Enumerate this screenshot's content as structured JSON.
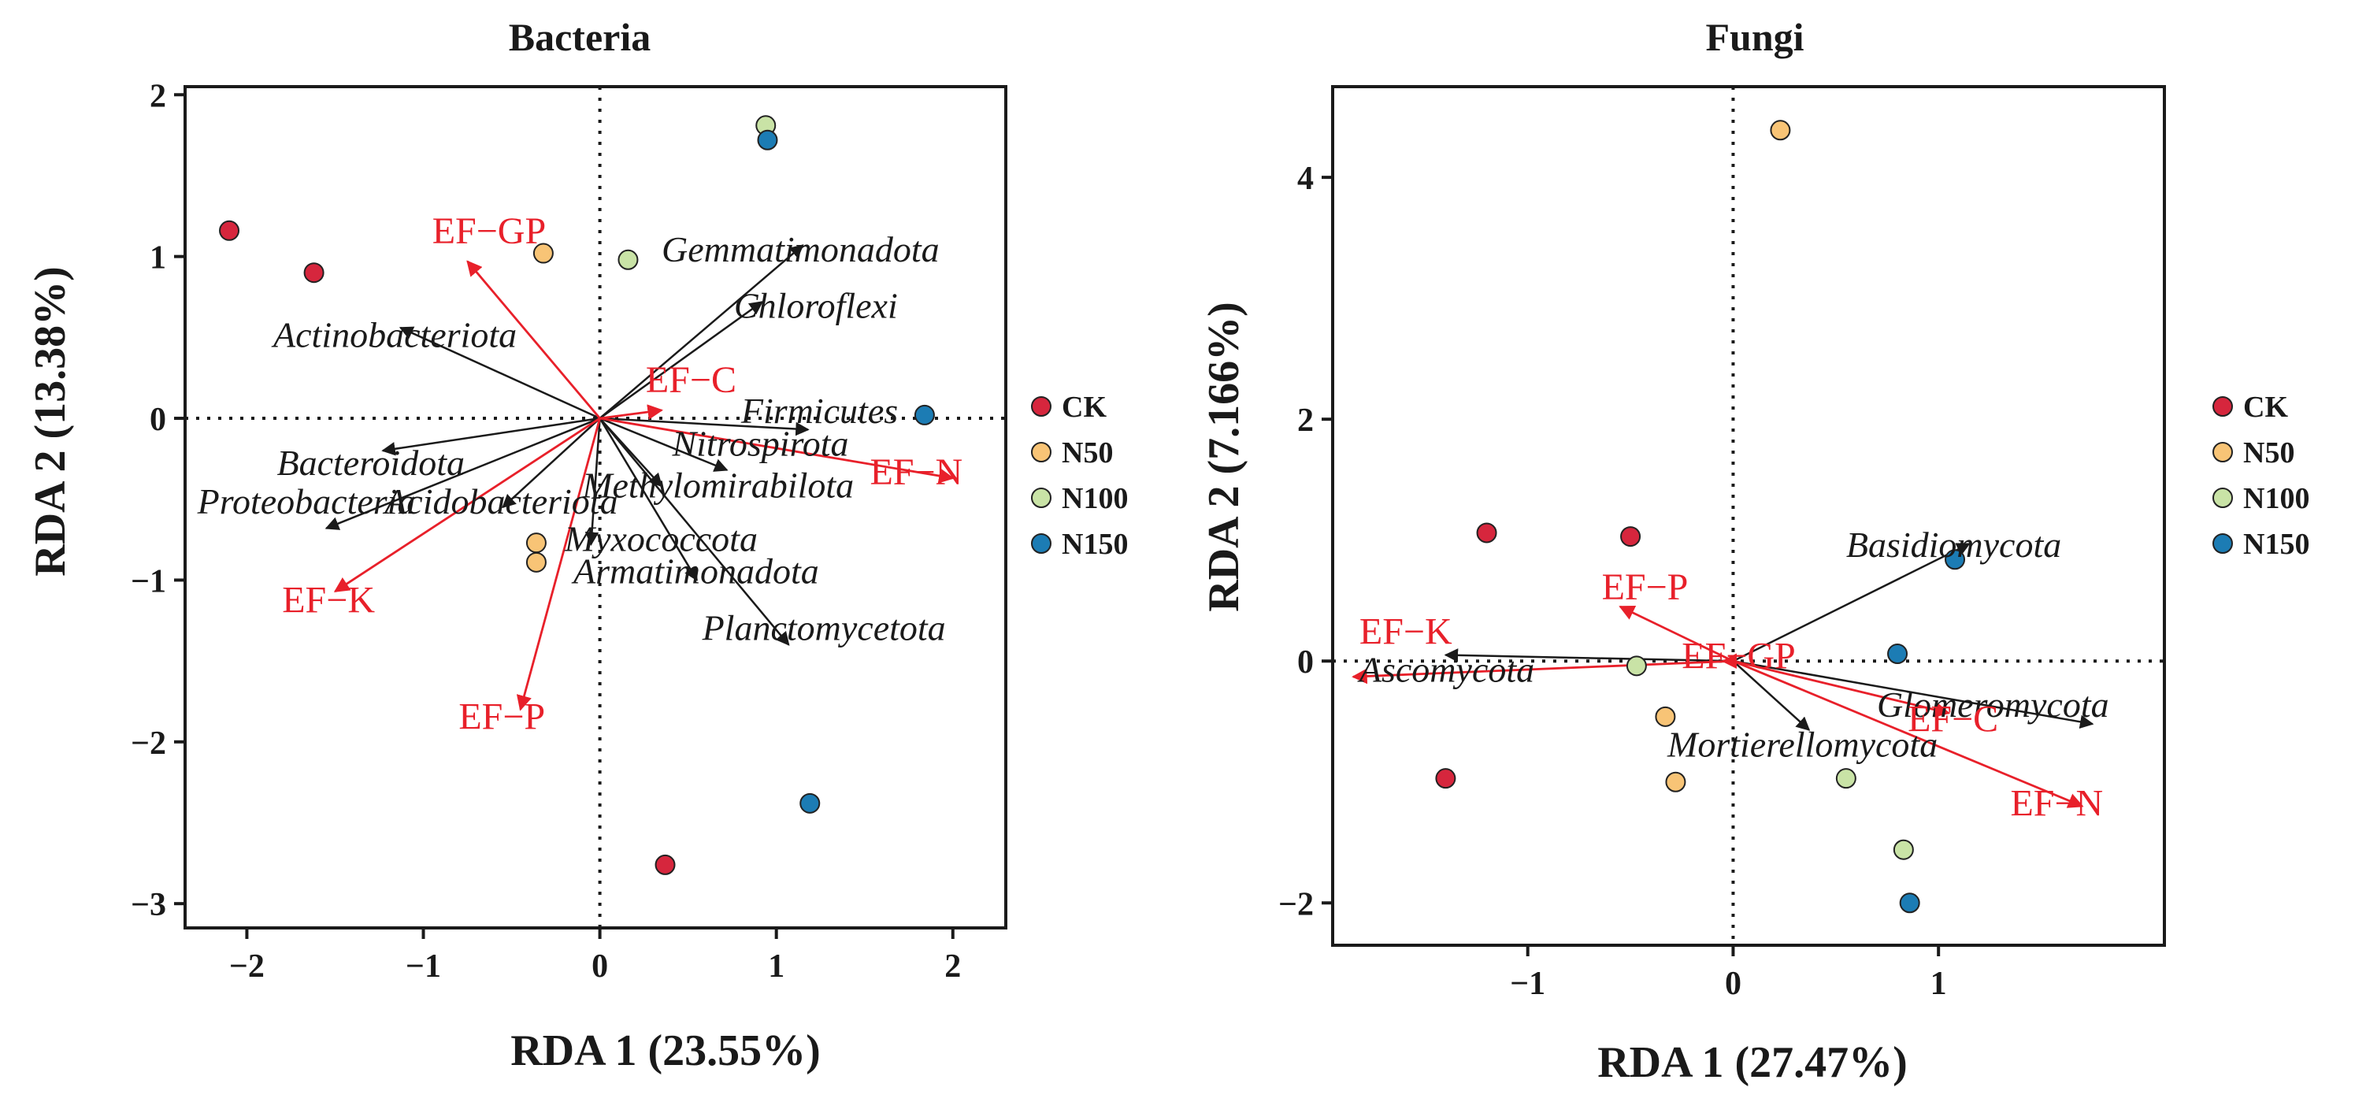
{
  "chart_data": [
    {
      "type": "scatter",
      "subtype": "rda-biplot",
      "title": "Bacteria",
      "xlabel": "RDA 1 (23.55%)",
      "ylabel": "RDA 2 (13.38%)",
      "xlim": [
        -2.35,
        2.3
      ],
      "ylim": [
        -3.15,
        2.05
      ],
      "xticks": [
        -2,
        -1,
        0,
        1,
        2
      ],
      "yticks": [
        -3,
        -2,
        -1,
        0,
        1,
        2
      ],
      "grid": false,
      "legend": "right",
      "groups": [
        {
          "name": "CK",
          "color": "#d6263d"
        },
        {
          "name": "N50",
          "color": "#f8c476"
        },
        {
          "name": "N100",
          "color": "#c9e3a6"
        },
        {
          "name": "N150",
          "color": "#1c7cb4"
        }
      ],
      "points": [
        {
          "group": "CK",
          "x": -2.1,
          "y": 1.16
        },
        {
          "group": "CK",
          "x": -1.62,
          "y": 0.9
        },
        {
          "group": "CK",
          "x": 0.37,
          "y": -2.76
        },
        {
          "group": "N50",
          "x": -0.32,
          "y": 1.02
        },
        {
          "group": "N50",
          "x": -0.36,
          "y": -0.77
        },
        {
          "group": "N50",
          "x": -0.36,
          "y": -0.89
        },
        {
          "group": "N100",
          "x": 0.16,
          "y": 0.98
        },
        {
          "group": "N100",
          "x": 0.94,
          "y": 1.81
        },
        {
          "group": "N150",
          "x": 0.95,
          "y": 1.72
        },
        {
          "group": "N150",
          "x": 1.84,
          "y": 0.02
        },
        {
          "group": "N150",
          "x": 1.19,
          "y": -2.38
        }
      ],
      "species": [
        {
          "name": "Gemmatimonadota",
          "x": 1.15,
          "y": 1.07
        },
        {
          "name": "Chloroflexi",
          "x": 0.92,
          "y": 0.72
        },
        {
          "name": "Actinobacteriota",
          "x": -1.13,
          "y": 0.56
        },
        {
          "name": "Firmicutes",
          "x": 1.18,
          "y": -0.07
        },
        {
          "name": "Nitrospirota",
          "x": 0.72,
          "y": -0.32
        },
        {
          "name": "Methylomirabilota",
          "x": 0.35,
          "y": -0.42
        },
        {
          "name": "Bacteroidota",
          "x": -1.23,
          "y": -0.2
        },
        {
          "name": "Acidobacteriota",
          "x": -0.55,
          "y": -0.55
        },
        {
          "name": "Proteobacteria",
          "x": -1.55,
          "y": -0.68
        },
        {
          "name": "Myxococcota",
          "x": -0.05,
          "y": -0.78
        },
        {
          "name": "Armatimonadota",
          "x": 0.55,
          "y": -1.0
        },
        {
          "name": "Planctomycetota",
          "x": 1.07,
          "y": -1.4
        }
      ],
      "env": [
        {
          "name": "EF−GP",
          "x": -0.75,
          "y": 0.97
        },
        {
          "name": "EF−C",
          "x": 0.35,
          "y": 0.05
        },
        {
          "name": "EF−N",
          "x": 2.0,
          "y": -0.37
        },
        {
          "name": "EF−K",
          "x": -1.5,
          "y": -1.07
        },
        {
          "name": "EF−P",
          "x": -0.45,
          "y": -1.8
        }
      ],
      "species_labels": [
        {
          "name": "Gemmatimonadota",
          "x": 0.35,
          "y": 0.97
        },
        {
          "name": "Chloroflexi",
          "x": 0.76,
          "y": 0.62
        },
        {
          "name": "Actinobacteriota",
          "x": -1.85,
          "y": 0.44
        },
        {
          "name": "Firmicutes",
          "x": 0.8,
          "y": -0.03
        },
        {
          "name": "Nitrospirota",
          "x": 0.41,
          "y": -0.23
        },
        {
          "name": "Methylomirabilota",
          "x": -0.1,
          "y": -0.49
        },
        {
          "name": "Bacteroidota",
          "x": -1.83,
          "y": -0.35
        },
        {
          "name": "Acidobacteriota",
          "x": -1.22,
          "y": -0.59
        },
        {
          "name": "Proteobacteria",
          "x": -2.28,
          "y": -0.59
        },
        {
          "name": "Myxococcota",
          "x": -0.2,
          "y": -0.82
        },
        {
          "name": "Armatimonadota",
          "x": -0.15,
          "y": -1.02
        },
        {
          "name": "Planctomycetota",
          "x": 0.58,
          "y": -1.37
        }
      ],
      "env_labels": [
        {
          "name": "EF−GP",
          "x": -0.95,
          "y": 1.08
        },
        {
          "name": "EF−C",
          "x": 0.26,
          "y": 0.16
        },
        {
          "name": "EF−N",
          "x": 1.53,
          "y": -0.41
        },
        {
          "name": "EF−K",
          "x": -1.8,
          "y": -1.2
        },
        {
          "name": "EF−P",
          "x": -0.8,
          "y": -1.92
        }
      ]
    },
    {
      "type": "scatter",
      "subtype": "rda-biplot",
      "title": "Fungi",
      "xlabel": "RDA 1 (27.47%)",
      "ylabel": "RDA 2 (7.166%)",
      "xlim": [
        -1.95,
        2.1
      ],
      "ylim": [
        -2.35,
        4.75
      ],
      "xticks": [
        -1,
        0,
        1
      ],
      "yticks": [
        -2,
        0,
        2,
        4
      ],
      "grid": false,
      "legend": "right",
      "groups": [
        {
          "name": "CK",
          "color": "#d6263d"
        },
        {
          "name": "N50",
          "color": "#f8c476"
        },
        {
          "name": "N100",
          "color": "#c9e3a6"
        },
        {
          "name": "N150",
          "color": "#1c7cb4"
        }
      ],
      "points": [
        {
          "group": "CK",
          "x": -1.2,
          "y": 1.06
        },
        {
          "group": "CK",
          "x": -0.5,
          "y": 1.03
        },
        {
          "group": "CK",
          "x": -1.4,
          "y": -0.97
        },
        {
          "group": "N50",
          "x": 0.23,
          "y": 4.39
        },
        {
          "group": "N50",
          "x": -0.33,
          "y": -0.46
        },
        {
          "group": "N50",
          "x": -0.28,
          "y": -1.0
        },
        {
          "group": "N100",
          "x": -0.47,
          "y": -0.04
        },
        {
          "group": "N100",
          "x": 0.55,
          "y": -0.97
        },
        {
          "group": "N100",
          "x": 0.83,
          "y": -1.56
        },
        {
          "group": "N150",
          "x": 1.08,
          "y": 0.84
        },
        {
          "group": "N150",
          "x": 0.8,
          "y": 0.06
        },
        {
          "group": "N150",
          "x": 0.86,
          "y": -2.0
        }
      ],
      "species": [
        {
          "name": "Basidiomycota",
          "x": 1.15,
          "y": 0.97
        },
        {
          "name": "Ascomycota",
          "x": -1.4,
          "y": 0.05
        },
        {
          "name": "Glomeromycota",
          "x": 1.75,
          "y": -0.52
        },
        {
          "name": "Mortierellomycota",
          "x": 0.37,
          "y": -0.57
        }
      ],
      "env": [
        {
          "name": "EF−P",
          "x": -0.55,
          "y": 0.45
        },
        {
          "name": "EF−K",
          "x": -1.85,
          "y": -0.13
        },
        {
          "name": "EF−GP",
          "x": -0.05,
          "y": 0.0
        },
        {
          "name": "EF−C",
          "x": 1.05,
          "y": -0.43
        },
        {
          "name": "EF−N",
          "x": 1.7,
          "y": -1.2
        }
      ],
      "species_labels": [
        {
          "name": "Basidiomycota",
          "x": 0.55,
          "y": 0.86
        },
        {
          "name": "Ascomycota",
          "x": -1.82,
          "y": -0.17
        },
        {
          "name": "Glomeromycota",
          "x": 0.7,
          "y": -0.46
        },
        {
          "name": "Mortierellomycota",
          "x": -0.32,
          "y": -0.79
        }
      ],
      "env_labels": [
        {
          "name": "EF−P",
          "x": -0.64,
          "y": 0.51
        },
        {
          "name": "EF−K",
          "x": -1.82,
          "y": 0.14
        },
        {
          "name": "EF−GP",
          "x": -0.25,
          "y": -0.06
        },
        {
          "name": "EF−C",
          "x": 0.85,
          "y": -0.58
        },
        {
          "name": "EF−N",
          "x": 1.35,
          "y": -1.28
        }
      ]
    }
  ]
}
